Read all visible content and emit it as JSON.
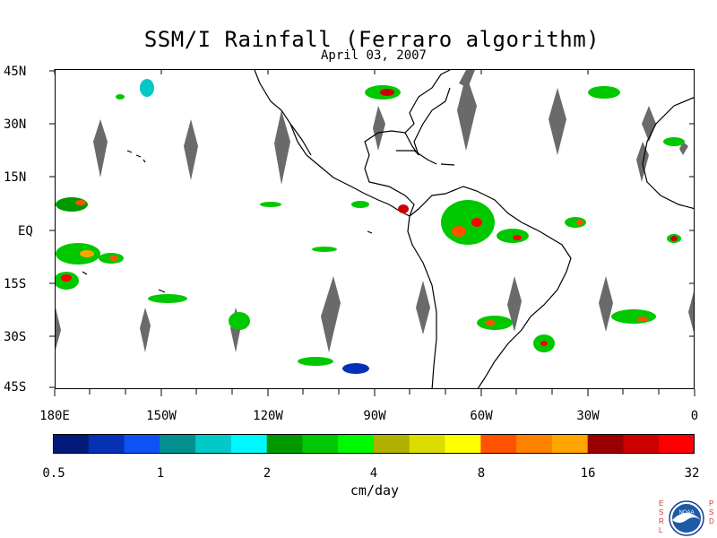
{
  "title": "SSM/I Rainfall (Ferraro algorithm)",
  "subtitle": "April 03, 2007",
  "lat_labels": [
    "45N",
    "30N",
    "15N",
    "EQ",
    "15S",
    "30S",
    "45S"
  ],
  "lon_labels": [
    "180E",
    "150W",
    "120W",
    "90W",
    "60W",
    "30W",
    "0"
  ],
  "colorbar": {
    "colors": [
      "#021a7a",
      "#0531b5",
      "#0d52f5",
      "#02918f",
      "#03c8c8",
      "#00f8ff",
      "#009a00",
      "#00c800",
      "#00f800",
      "#b0b000",
      "#dcdc00",
      "#ffff00",
      "#ff5200",
      "#ff8100",
      "#ffa400",
      "#9a0000",
      "#cc0000",
      "#ff0000"
    ],
    "tick_labels": [
      "0.5",
      "1",
      "2",
      "4",
      "8",
      "16",
      "32"
    ],
    "units": "cm/day"
  },
  "logo": {
    "left_letters": "ESRL",
    "right_letters": "PSD",
    "emblem_text": "NOAA"
  },
  "colors": {
    "land_outline": "#000000",
    "no_data_gap": "#6a6a6a",
    "background": "#ffffff"
  }
}
